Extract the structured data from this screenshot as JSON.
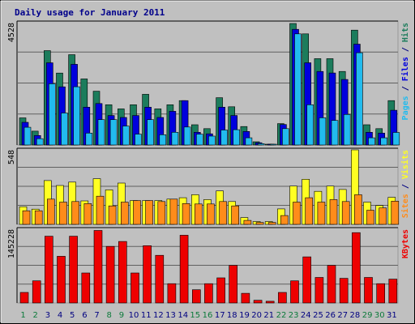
{
  "chart_data": {
    "type": "bar",
    "title": "Daily usage for January 2011",
    "colors": {
      "hits": "#1c7c5c",
      "files": "#0000dd",
      "pages": "#22bbee",
      "visits": "#ffff22",
      "sites": "#ff8c1a",
      "kbytes": "#ee0000",
      "weekday": "#000080",
      "weekend": "#0b7a3a",
      "panel": "#c0c0c0",
      "frame": "#9a9a9a",
      "grid": "#606060"
    },
    "days": [
      {
        "label": "1",
        "weekend": true
      },
      {
        "label": "2",
        "weekend": true
      },
      {
        "label": "3",
        "weekend": false
      },
      {
        "label": "4",
        "weekend": false
      },
      {
        "label": "5",
        "weekend": false
      },
      {
        "label": "6",
        "weekend": false
      },
      {
        "label": "7",
        "weekend": false
      },
      {
        "label": "8",
        "weekend": true
      },
      {
        "label": "9",
        "weekend": true
      },
      {
        "label": "10",
        "weekend": false
      },
      {
        "label": "11",
        "weekend": false
      },
      {
        "label": "12",
        "weekend": false
      },
      {
        "label": "13",
        "weekend": false
      },
      {
        "label": "14",
        "weekend": false
      },
      {
        "label": "15",
        "weekend": true
      },
      {
        "label": "16",
        "weekend": true
      },
      {
        "label": "17",
        "weekend": false
      },
      {
        "label": "18",
        "weekend": false
      },
      {
        "label": "19",
        "weekend": false
      },
      {
        "label": "20",
        "weekend": false
      },
      {
        "label": "21",
        "weekend": false
      },
      {
        "label": "22",
        "weekend": true
      },
      {
        "label": "23",
        "weekend": true
      },
      {
        "label": "24",
        "weekend": false
      },
      {
        "label": "25",
        "weekend": false
      },
      {
        "label": "26",
        "weekend": false
      },
      {
        "label": "27",
        "weekend": false
      },
      {
        "label": "28",
        "weekend": false
      },
      {
        "label": "29",
        "weekend": true
      },
      {
        "label": "30",
        "weekend": true
      },
      {
        "label": "31",
        "weekend": false
      }
    ],
    "panels": [
      {
        "id": "top",
        "ymax_label": "4528",
        "ymax": 4528,
        "grid_lines": 3,
        "right_title": [
          {
            "text": "Pages",
            "color_key": "pages"
          },
          {
            "text": " / ",
            "color_key": "weekday"
          },
          {
            "text": "Files",
            "color_key": "files"
          },
          {
            "text": " / ",
            "color_key": "weekday"
          },
          {
            "text": "Hits",
            "color_key": "hits"
          }
        ],
        "series": [
          {
            "key": "hits",
            "values": [
              1006,
              513,
              3492,
              2662,
              3344,
              2448,
              1990,
              1490,
              1337,
              1490,
              1876,
              1337,
              1490,
              1643,
              750,
              607,
              1750,
              1415,
              684,
              119,
              31,
              793,
              4498,
              4115,
              3198,
              3198,
              2724,
              4252,
              750,
              607,
              1643
            ]
          },
          {
            "key": "files",
            "values": [
              841,
              350,
              3043,
              2154,
              2988,
              1399,
              1535,
              1093,
              1020,
              1093,
              1399,
              1020,
              1247,
              1643,
              470,
              413,
              1399,
              1093,
              500,
              83,
              29,
              759,
              4282,
              3043,
              2724,
              2665,
              2425,
              3733,
              470,
              440,
              1285
            ]
          },
          {
            "key": "pages",
            "values": [
              658,
              235,
              2266,
              1183,
              2157,
              441,
              939,
              939,
              702,
              402,
              939,
              380,
              470,
              667,
              402,
              329,
              555,
              567,
              268,
              50,
              20,
              607,
              4115,
              1490,
              1008,
              908,
              1130,
              3416,
              268,
              268,
              466
            ]
          }
        ]
      },
      {
        "id": "mid",
        "ymax_label": "548",
        "ymax": 548,
        "grid_lines": 3,
        "right_title": [
          {
            "text": "Sites",
            "color_key": "sites"
          },
          {
            "text": " / ",
            "color_key": "weekday"
          },
          {
            "text": "Visits",
            "color_key": "visits"
          }
        ],
        "series": [
          {
            "key": "visits",
            "values": [
              130,
              112,
              322,
              286,
              311,
              173,
              336,
              254,
              304,
              175,
              175,
              175,
              186,
              196,
              218,
              182,
              246,
              168,
              50,
              21,
              21,
              114,
              282,
              332,
              243,
              282,
              257,
              548,
              164,
              139,
              199
            ]
          },
          {
            "key": "sites",
            "values": [
              100,
              100,
              186,
              164,
              168,
              153,
              207,
              136,
              164,
              175,
              175,
              168,
              186,
              153,
              150,
              150,
              168,
              136,
              29,
              14,
              14,
              65,
              164,
              196,
              164,
              182,
              168,
              218,
              104,
              121,
              171
            ]
          }
        ]
      },
      {
        "id": "bot",
        "ymax_label": "145228",
        "ymax": 145228,
        "grid_lines": 3,
        "right_title": [
          {
            "text": "KBytes",
            "color_key": "kbytes"
          }
        ],
        "series": [
          {
            "key": "kbytes",
            "values": [
              20712,
              43559,
              131428,
              91971,
              131428,
              59087,
              142856,
              111428,
              121133,
              59087,
              112856,
              93831,
              38000,
              133428,
              26000,
              38000,
              49417,
              74000,
              19000,
              5200,
              3300,
              20712,
              43559,
              90857,
              50287,
              74000,
              48571,
              138571,
              50287,
              38000,
              46857
            ]
          }
        ]
      }
    ]
  }
}
